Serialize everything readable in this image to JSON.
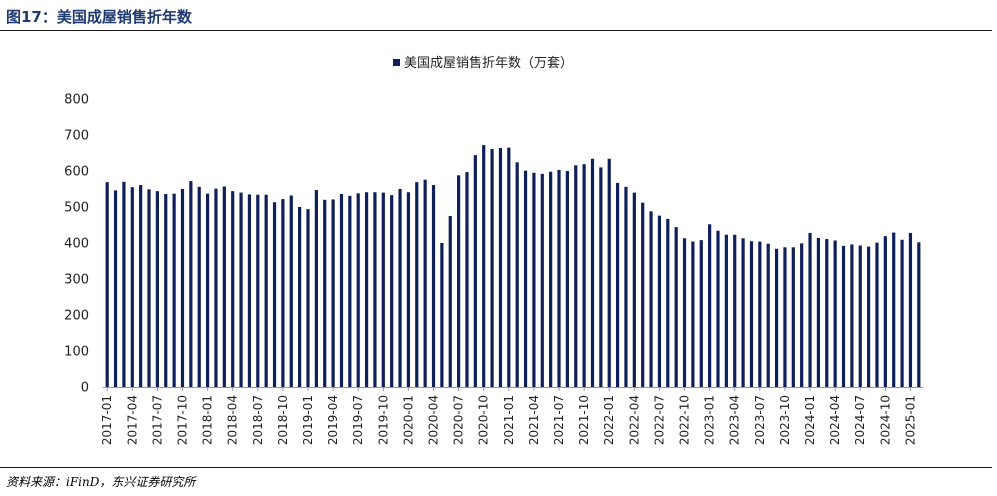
{
  "figure": {
    "title": "图17：美国成屋销售折年数",
    "source": "资料来源：iFinD，东兴证券研究所"
  },
  "colors": {
    "title": "#1F3A6E",
    "bar": "#0E1F5A",
    "axis": "#999999"
  },
  "chart_data": {
    "type": "bar",
    "legend": {
      "label": "美国成屋销售折年数（万套）",
      "position": "top-center"
    },
    "series": [
      {
        "name": "美国成屋销售折年数（万套）",
        "values": [
          569,
          546,
          570,
          555,
          561,
          549,
          544,
          536,
          537,
          550,
          572,
          556,
          537,
          551,
          557,
          544,
          540,
          535,
          534,
          534,
          513,
          522,
          532,
          500,
          494,
          547,
          520,
          521,
          536,
          531,
          538,
          541,
          541,
          540,
          533,
          550,
          541,
          569,
          576,
          561,
          400,
          475,
          588,
          597,
          644,
          672,
          661,
          664,
          665,
          624,
          601,
          595,
          592,
          598,
          603,
          600,
          616,
          619,
          634,
          610,
          634,
          567,
          556,
          540,
          512,
          488,
          476,
          467,
          444,
          413,
          404,
          408,
          452,
          434,
          423,
          423,
          413,
          405,
          404,
          398,
          384,
          388,
          388,
          399,
          428,
          414,
          411,
          407,
          392,
          396,
          393,
          390,
          401,
          419,
          429,
          409,
          428,
          402
        ]
      }
    ],
    "x_start": "2017-01",
    "x_tick_labels": [
      "2017-01",
      "2017-04",
      "2017-07",
      "2017-10",
      "2018-01",
      "2018-04",
      "2018-07",
      "2018-10",
      "2019-01",
      "2019-04",
      "2019-07",
      "2019-10",
      "2020-01",
      "2020-04",
      "2020-07",
      "2020-10",
      "2021-01",
      "2021-04",
      "2021-07",
      "2021-10",
      "2022-01",
      "2022-04",
      "2022-07",
      "2022-10",
      "2023-01",
      "2023-04",
      "2023-07",
      "2023-10",
      "2024-01",
      "2024-04",
      "2024-07",
      "2024-10",
      "2025-01"
    ],
    "y_tick_labels": [
      "0",
      "100",
      "200",
      "300",
      "400",
      "500",
      "600",
      "700",
      "800"
    ],
    "ylim": [
      0,
      800
    ],
    "grid": false
  }
}
